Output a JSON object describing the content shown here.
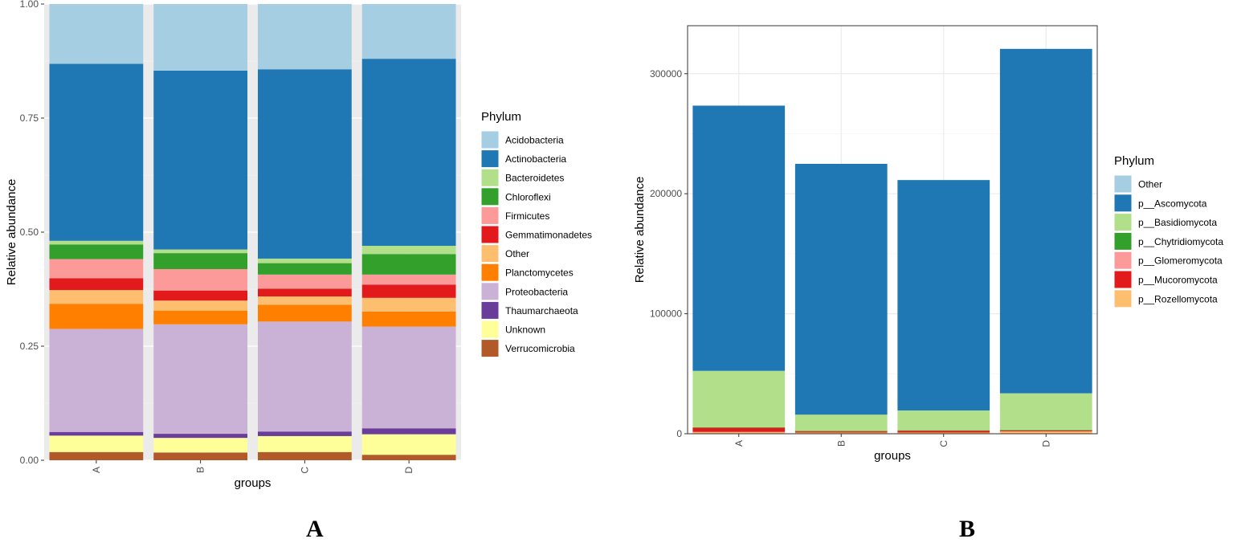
{
  "panels": {
    "a_label": "A",
    "b_label": "B"
  },
  "chart_data": [
    {
      "type": "bar",
      "stacked": true,
      "theme": "grey",
      "title": "",
      "xlabel": "groups",
      "ylabel": "Relative abundance",
      "ylim": [
        0,
        1.0
      ],
      "yticks": [
        0,
        0.25,
        0.5,
        0.75,
        1.0
      ],
      "ytick_labels": [
        "0.00",
        "0.25",
        "0.50",
        "0.75",
        "1.00"
      ],
      "categories": [
        "A",
        "B",
        "C",
        "D"
      ],
      "legend_title": "Phylum",
      "legend_position": "right",
      "series": [
        {
          "name": "Verrucomicrobia",
          "color": "#b15928",
          "values": [
            0.018,
            0.017,
            0.018,
            0.012
          ]
        },
        {
          "name": "Unknown",
          "color": "#ffff99",
          "values": [
            0.036,
            0.032,
            0.035,
            0.045
          ]
        },
        {
          "name": "Thaumarchaeota",
          "color": "#6a3d9a",
          "values": [
            0.008,
            0.009,
            0.01,
            0.013
          ]
        },
        {
          "name": "Proteobacteria",
          "color": "#cab2d6",
          "values": [
            0.226,
            0.24,
            0.241,
            0.223
          ]
        },
        {
          "name": "Planctomycetes",
          "color": "#ff7f00",
          "values": [
            0.055,
            0.03,
            0.037,
            0.033
          ]
        },
        {
          "name": "Other",
          "color": "#fdbf6f",
          "values": [
            0.03,
            0.022,
            0.018,
            0.03
          ]
        },
        {
          "name": "Gemmatimonadetes",
          "color": "#e31a1c",
          "values": [
            0.026,
            0.022,
            0.017,
            0.029
          ]
        },
        {
          "name": "Firmicutes",
          "color": "#fb9a99",
          "values": [
            0.042,
            0.047,
            0.031,
            0.022
          ]
        },
        {
          "name": "Chloroflexi",
          "color": "#33a02c",
          "values": [
            0.032,
            0.035,
            0.025,
            0.045
          ]
        },
        {
          "name": "Bacteroidetes",
          "color": "#b2df8a",
          "values": [
            0.008,
            0.008,
            0.01,
            0.018
          ]
        },
        {
          "name": "Actinobacteria",
          "color": "#1f78b4",
          "values": [
            0.388,
            0.392,
            0.415,
            0.41
          ]
        },
        {
          "name": "Acidobacteria",
          "color": "#a6cee3",
          "values": [
            0.131,
            0.146,
            0.143,
            0.12
          ]
        }
      ],
      "legend_order": [
        "Acidobacteria",
        "Actinobacteria",
        "Bacteroidetes",
        "Chloroflexi",
        "Firmicutes",
        "Gemmatimonadetes",
        "Other",
        "Planctomycetes",
        "Proteobacteria",
        "Thaumarchaeota",
        "Unknown",
        "Verrucomicrobia"
      ]
    },
    {
      "type": "bar",
      "stacked": true,
      "theme": "bw",
      "title": "",
      "xlabel": "groups",
      "ylabel": "Relative abundance",
      "ylim": [
        0,
        340000
      ],
      "yticks": [
        0,
        100000,
        200000,
        300000
      ],
      "ytick_labels": [
        "0",
        "100000",
        "200000",
        "300000"
      ],
      "categories": [
        "A",
        "B",
        "C",
        "D"
      ],
      "legend_title": "Phylum",
      "legend_position": "right",
      "series": [
        {
          "name": "p__Rozellomycota",
          "color": "#fdbf6f",
          "values": [
            1500,
            1000,
            1000,
            2000
          ]
        },
        {
          "name": "p__Mucoromycota",
          "color": "#e31a1c",
          "values": [
            3500,
            1000,
            1500,
            800
          ]
        },
        {
          "name": "p__Glomeromycota",
          "color": "#fb9a99",
          "values": [
            300,
            300,
            300,
            300
          ]
        },
        {
          "name": "p__Chytridiomycota",
          "color": "#33a02c",
          "values": [
            100,
            100,
            100,
            100
          ]
        },
        {
          "name": "p__Basidiomycota",
          "color": "#b2df8a",
          "values": [
            47000,
            13500,
            16500,
            30500
          ]
        },
        {
          "name": "p__Ascomycota",
          "color": "#1f78b4",
          "values": [
            221000,
            209000,
            192000,
            287000
          ]
        },
        {
          "name": "Other",
          "color": "#a6cee3",
          "values": [
            0,
            0,
            0,
            0
          ]
        }
      ],
      "legend_order": [
        "Other",
        "p__Ascomycota",
        "p__Basidiomycota",
        "p__Chytridiomycota",
        "p__Glomeromycota",
        "p__Mucoromycota",
        "p__Rozellomycota"
      ]
    }
  ]
}
